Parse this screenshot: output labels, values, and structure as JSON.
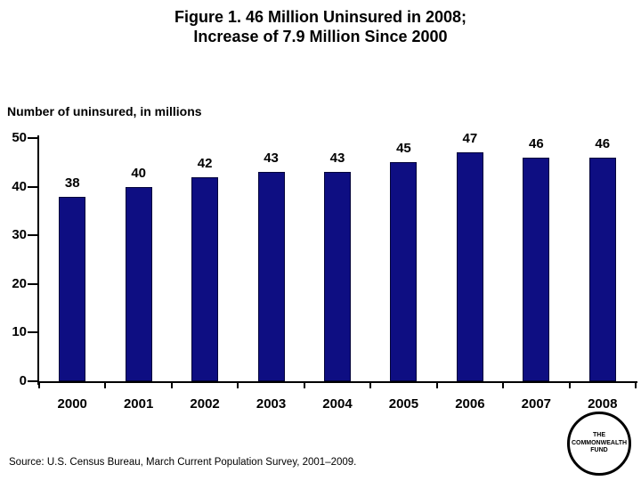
{
  "slide": {
    "title_line1": "Figure 1. 46 Million Uninsured in 2008;",
    "title_line2": "Increase of 7.9 Million Since 2000",
    "source": "Source: U.S. Census Bureau, March Current Population Survey, 2001–2009.",
    "logo_line1": "THE",
    "logo_line2": "COMMONWEALTH",
    "logo_line3": "FUND"
  },
  "colors": {
    "bar_fill": "#0e0e82",
    "bar_border": "#04043a",
    "axis": "#000000",
    "text": "#000000",
    "background": "#ffffff"
  },
  "chart_data": {
    "type": "bar",
    "title": "Figure 1. 46 Million Uninsured in 2008; Increase of 7.9 Million Since 2000",
    "ylabel": "Number of uninsured, in millions",
    "xlabel": "",
    "categories": [
      "2000",
      "2001",
      "2002",
      "2003",
      "2004",
      "2005",
      "2006",
      "2007",
      "2008"
    ],
    "values": [
      38,
      40,
      42,
      43,
      43,
      45,
      47,
      46,
      46
    ],
    "data_labels": [
      "38",
      "40",
      "42",
      "43",
      "43",
      "45",
      "47",
      "46",
      "46"
    ],
    "ylim": [
      0,
      50
    ],
    "yticks": [
      0,
      10,
      20,
      30,
      40,
      50
    ],
    "grid": false,
    "legend": false
  }
}
